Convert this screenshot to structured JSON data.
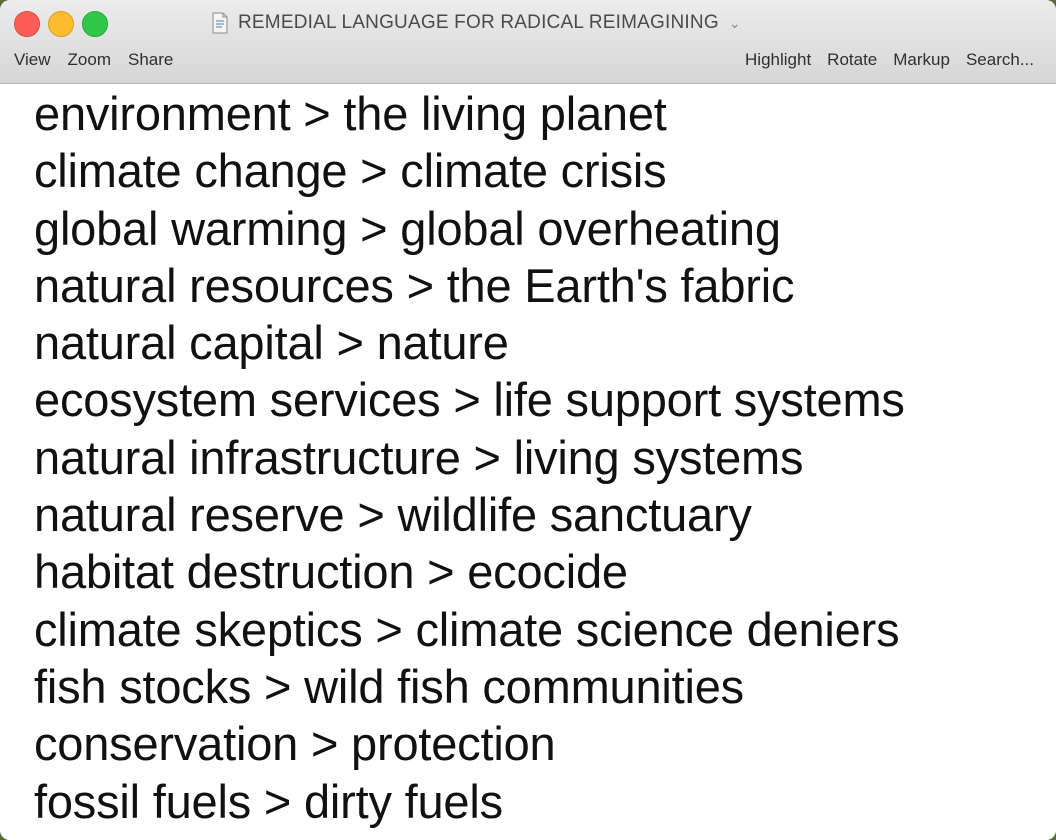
{
  "window": {
    "title": "REMEDIAL LANGUAGE FOR RADICAL REIMAGINING",
    "title_chevron": "⌄",
    "doc_icon": "document-icon"
  },
  "toolbar": {
    "left": [
      "View",
      "Zoom",
      "Share"
    ],
    "right": [
      "Highlight",
      "Rotate",
      "Markup",
      "Search..."
    ]
  },
  "document": {
    "lines": [
      "environment > the living planet",
      "climate change > climate crisis",
      "global warming > global overheating",
      "natural resources > the Earth's fabric",
      "natural capital > nature",
      "ecosystem services > life support systems",
      "natural infrastructure > living systems",
      "natural reserve > wildlife sanctuary",
      "habitat destruction > ecocide",
      "climate skeptics > climate science deniers",
      "fish stocks > wild fish communities",
      "conservation > protection",
      "fossil fuels > dirty fuels"
    ]
  },
  "colors": {
    "close": "#fc5e57",
    "minimize": "#fdbc2e",
    "zoom": "#33c748",
    "text": "#111111"
  }
}
